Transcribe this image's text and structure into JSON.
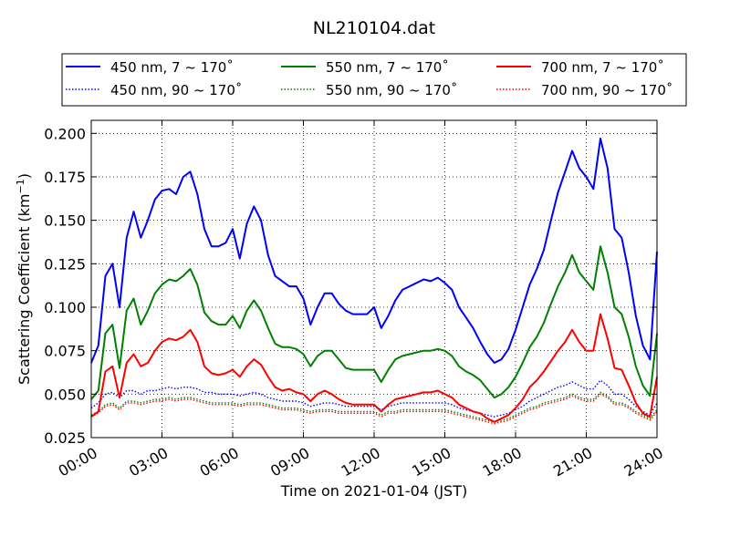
{
  "chart_data": {
    "type": "line",
    "title": "NL210104.dat",
    "xlabel": "Time on 2021-01-04 (JST)",
    "ylabel_main": "Scattering Coefficient (km",
    "ylabel_sup": "−1",
    "ylabel_close": ")",
    "xlim": [
      0,
      24
    ],
    "ylim": [
      0.025,
      0.2075
    ],
    "x_ticks": [
      0,
      3,
      6,
      9,
      12,
      15,
      18,
      21,
      24
    ],
    "x_tick_labels": [
      "00:00",
      "03:00",
      "06:00",
      "09:00",
      "12:00",
      "15:00",
      "18:00",
      "21:00",
      "24:00"
    ],
    "y_ticks": [
      0.025,
      0.05,
      0.075,
      0.1,
      0.125,
      0.15,
      0.175,
      0.2
    ],
    "y_tick_labels": [
      "0.025",
      "0.050",
      "0.075",
      "0.100",
      "0.125",
      "0.150",
      "0.175",
      "0.200"
    ],
    "grid": true,
    "legend_position": "top, above plot",
    "x": [
      0,
      0.3,
      0.6,
      0.9,
      1.2,
      1.5,
      1.8,
      2.1,
      2.4,
      2.7,
      3.0,
      3.3,
      3.6,
      3.9,
      4.2,
      4.5,
      4.8,
      5.1,
      5.4,
      5.7,
      6.0,
      6.3,
      6.6,
      6.9,
      7.2,
      7.5,
      7.8,
      8.1,
      8.4,
      8.7,
      9.0,
      9.3,
      9.6,
      9.9,
      10.2,
      10.5,
      10.8,
      11.1,
      11.4,
      11.7,
      12.0,
      12.3,
      12.6,
      12.9,
      13.2,
      13.5,
      13.8,
      14.1,
      14.4,
      14.7,
      15.0,
      15.3,
      15.6,
      15.9,
      16.2,
      16.5,
      16.8,
      17.1,
      17.4,
      17.7,
      18.0,
      18.3,
      18.6,
      18.9,
      19.2,
      19.5,
      19.8,
      20.1,
      20.4,
      20.7,
      21.0,
      21.3,
      21.6,
      21.9,
      22.2,
      22.5,
      22.8,
      23.1,
      23.4,
      23.7,
      24.0
    ],
    "series": [
      {
        "name": "450 nm, 7 ~ 170˚",
        "color": "#0000ff",
        "style": "solid",
        "values": [
          0.068,
          0.078,
          0.118,
          0.125,
          0.1,
          0.14,
          0.155,
          0.14,
          0.15,
          0.162,
          0.167,
          0.168,
          0.165,
          0.175,
          0.178,
          0.165,
          0.145,
          0.135,
          0.135,
          0.137,
          0.145,
          0.128,
          0.148,
          0.158,
          0.15,
          0.13,
          0.118,
          0.115,
          0.112,
          0.112,
          0.105,
          0.09,
          0.1,
          0.108,
          0.108,
          0.102,
          0.098,
          0.096,
          0.096,
          0.096,
          0.1,
          0.088,
          0.095,
          0.104,
          0.11,
          0.112,
          0.114,
          0.116,
          0.115,
          0.117,
          0.114,
          0.11,
          0.1,
          0.094,
          0.088,
          0.08,
          0.073,
          0.068,
          0.07,
          0.076,
          0.087,
          0.1,
          0.113,
          0.122,
          0.133,
          0.15,
          0.166,
          0.178,
          0.19,
          0.18,
          0.175,
          0.168,
          0.197,
          0.18,
          0.145,
          0.14,
          0.12,
          0.095,
          0.078,
          0.07,
          0.132
        ]
      },
      {
        "name": "550 nm, 7 ~ 170˚",
        "color": "#008000",
        "style": "solid",
        "values": [
          0.047,
          0.052,
          0.085,
          0.09,
          0.065,
          0.098,
          0.105,
          0.09,
          0.098,
          0.108,
          0.113,
          0.116,
          0.115,
          0.118,
          0.122,
          0.113,
          0.097,
          0.092,
          0.09,
          0.09,
          0.095,
          0.088,
          0.098,
          0.104,
          0.098,
          0.088,
          0.079,
          0.077,
          0.077,
          0.076,
          0.073,
          0.066,
          0.072,
          0.075,
          0.075,
          0.07,
          0.065,
          0.064,
          0.064,
          0.064,
          0.064,
          0.057,
          0.064,
          0.07,
          0.072,
          0.073,
          0.074,
          0.075,
          0.075,
          0.076,
          0.075,
          0.072,
          0.066,
          0.063,
          0.061,
          0.058,
          0.053,
          0.048,
          0.05,
          0.054,
          0.06,
          0.068,
          0.077,
          0.083,
          0.091,
          0.102,
          0.112,
          0.12,
          0.13,
          0.12,
          0.115,
          0.11,
          0.135,
          0.12,
          0.1,
          0.096,
          0.083,
          0.066,
          0.055,
          0.049,
          0.085
        ]
      },
      {
        "name": "700 nm, 7 ~ 170˚",
        "color": "#ff0000",
        "style": "solid",
        "values": [
          0.037,
          0.04,
          0.063,
          0.066,
          0.048,
          0.068,
          0.073,
          0.066,
          0.068,
          0.075,
          0.08,
          0.082,
          0.081,
          0.083,
          0.087,
          0.08,
          0.066,
          0.062,
          0.061,
          0.062,
          0.064,
          0.06,
          0.066,
          0.07,
          0.067,
          0.06,
          0.054,
          0.052,
          0.053,
          0.051,
          0.05,
          0.046,
          0.05,
          0.052,
          0.05,
          0.047,
          0.045,
          0.044,
          0.044,
          0.044,
          0.044,
          0.04,
          0.044,
          0.047,
          0.048,
          0.049,
          0.05,
          0.051,
          0.051,
          0.052,
          0.05,
          0.048,
          0.044,
          0.042,
          0.04,
          0.039,
          0.036,
          0.034,
          0.036,
          0.038,
          0.042,
          0.047,
          0.054,
          0.058,
          0.063,
          0.069,
          0.075,
          0.08,
          0.087,
          0.08,
          0.075,
          0.075,
          0.096,
          0.082,
          0.065,
          0.064,
          0.055,
          0.045,
          0.039,
          0.037,
          0.06
        ]
      },
      {
        "name": "450 nm, 90 ~ 170˚",
        "color": "#0000ff",
        "style": "dotted",
        "values": [
          0.042,
          0.045,
          0.05,
          0.051,
          0.048,
          0.052,
          0.052,
          0.05,
          0.052,
          0.052,
          0.053,
          0.054,
          0.053,
          0.054,
          0.054,
          0.053,
          0.051,
          0.051,
          0.05,
          0.05,
          0.05,
          0.049,
          0.05,
          0.051,
          0.05,
          0.048,
          0.047,
          0.046,
          0.046,
          0.046,
          0.045,
          0.043,
          0.044,
          0.045,
          0.045,
          0.044,
          0.043,
          0.043,
          0.043,
          0.043,
          0.043,
          0.041,
          0.043,
          0.044,
          0.045,
          0.045,
          0.045,
          0.045,
          0.045,
          0.045,
          0.045,
          0.044,
          0.042,
          0.041,
          0.04,
          0.039,
          0.038,
          0.037,
          0.038,
          0.039,
          0.041,
          0.043,
          0.046,
          0.048,
          0.05,
          0.052,
          0.054,
          0.055,
          0.057,
          0.055,
          0.053,
          0.053,
          0.058,
          0.055,
          0.05,
          0.05,
          0.047,
          0.043,
          0.04,
          0.038,
          0.045
        ]
      },
      {
        "name": "550 nm, 90 ~ 170˚",
        "color": "#008000",
        "style": "dotted",
        "values": [
          0.038,
          0.04,
          0.044,
          0.045,
          0.042,
          0.046,
          0.046,
          0.045,
          0.046,
          0.047,
          0.047,
          0.048,
          0.047,
          0.048,
          0.048,
          0.047,
          0.046,
          0.045,
          0.045,
          0.045,
          0.045,
          0.044,
          0.045,
          0.045,
          0.045,
          0.044,
          0.043,
          0.042,
          0.042,
          0.042,
          0.041,
          0.04,
          0.041,
          0.041,
          0.041,
          0.04,
          0.04,
          0.04,
          0.04,
          0.04,
          0.04,
          0.038,
          0.04,
          0.04,
          0.041,
          0.041,
          0.041,
          0.041,
          0.041,
          0.041,
          0.041,
          0.04,
          0.039,
          0.038,
          0.037,
          0.036,
          0.035,
          0.034,
          0.035,
          0.036,
          0.038,
          0.04,
          0.042,
          0.043,
          0.045,
          0.046,
          0.047,
          0.048,
          0.05,
          0.048,
          0.047,
          0.047,
          0.051,
          0.049,
          0.045,
          0.045,
          0.043,
          0.04,
          0.038,
          0.036,
          0.041
        ]
      },
      {
        "name": "700 nm, 90 ~ 170˚",
        "color": "#ff0000",
        "style": "dotted",
        "values": [
          0.037,
          0.039,
          0.043,
          0.044,
          0.041,
          0.045,
          0.045,
          0.044,
          0.045,
          0.046,
          0.046,
          0.047,
          0.046,
          0.047,
          0.047,
          0.046,
          0.045,
          0.044,
          0.044,
          0.044,
          0.044,
          0.043,
          0.044,
          0.044,
          0.044,
          0.043,
          0.042,
          0.041,
          0.041,
          0.041,
          0.04,
          0.039,
          0.04,
          0.04,
          0.04,
          0.039,
          0.039,
          0.039,
          0.039,
          0.039,
          0.039,
          0.037,
          0.039,
          0.039,
          0.04,
          0.04,
          0.04,
          0.04,
          0.04,
          0.04,
          0.04,
          0.039,
          0.038,
          0.037,
          0.036,
          0.035,
          0.034,
          0.033,
          0.034,
          0.035,
          0.037,
          0.039,
          0.041,
          0.042,
          0.044,
          0.045,
          0.046,
          0.047,
          0.049,
          0.047,
          0.046,
          0.046,
          0.05,
          0.048,
          0.044,
          0.044,
          0.042,
          0.039,
          0.037,
          0.035,
          0.04
        ]
      }
    ]
  }
}
